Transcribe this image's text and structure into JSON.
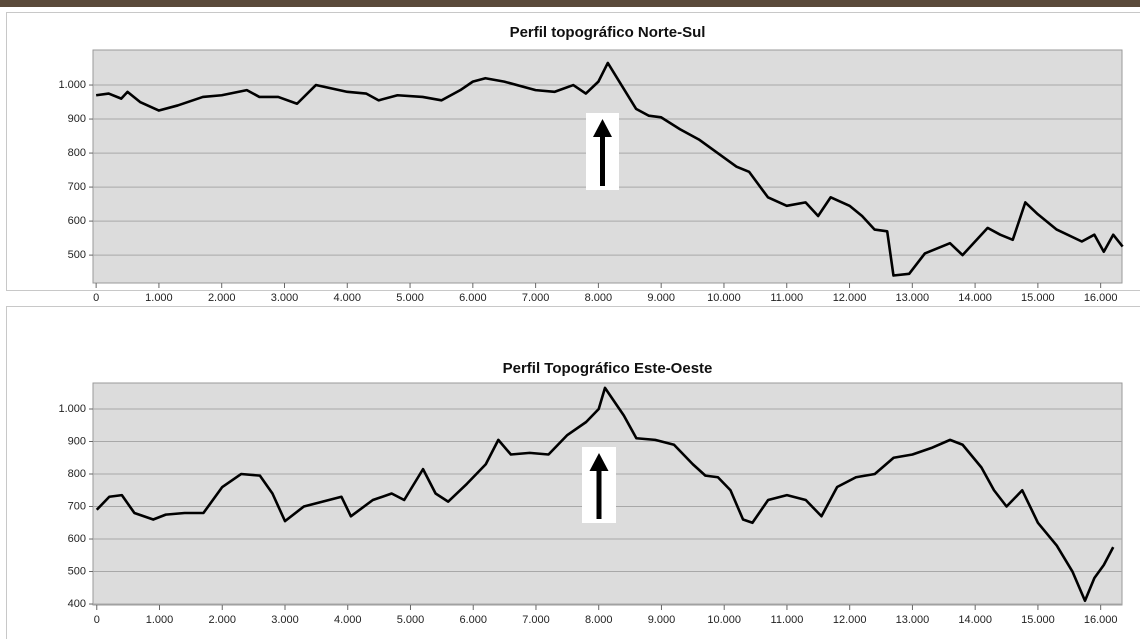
{
  "chart_data": [
    {
      "type": "line",
      "title": "Perfil topográfico Norte-Sul",
      "x": [
        0,
        200,
        400,
        500,
        700,
        1000,
        1300,
        1700,
        2000,
        2400,
        2600,
        2900,
        3200,
        3500,
        4000,
        4300,
        4500,
        4800,
        5200,
        5500,
        5800,
        6000,
        6200,
        6500,
        7000,
        7300,
        7600,
        7800,
        8000,
        8150,
        8400,
        8600,
        8800,
        9000,
        9300,
        9600,
        9900,
        10200,
        10400,
        10700,
        11000,
        11300,
        11500,
        11700,
        12000,
        12200,
        12400,
        12600,
        12700,
        12950,
        13200,
        13600,
        13800,
        14200,
        14400,
        14600,
        14800,
        15000,
        15300,
        15700,
        15900,
        16050,
        16200,
        16350
      ],
      "values": [
        970,
        975,
        960,
        980,
        950,
        925,
        940,
        965,
        970,
        985,
        965,
        965,
        945,
        1000,
        980,
        975,
        955,
        970,
        965,
        955,
        985,
        1010,
        1020,
        1010,
        985,
        980,
        1000,
        975,
        1010,
        1065,
        990,
        930,
        910,
        905,
        870,
        840,
        800,
        760,
        745,
        670,
        645,
        655,
        615,
        670,
        645,
        615,
        575,
        570,
        440,
        445,
        505,
        535,
        500,
        580,
        560,
        545,
        655,
        620,
        575,
        540,
        560,
        510,
        560,
        525
      ],
      "color": "#000000",
      "xlim": [
        -50,
        16340
      ],
      "ylim": [
        418,
        1103
      ],
      "xticks": [
        0,
        {
          "value": 1000,
          "label": "1.000"
        },
        {
          "value": 2000,
          "label": "2.000"
        },
        {
          "value": 3000,
          "label": "3.000"
        },
        {
          "value": 4000,
          "label": "4.000"
        },
        {
          "value": 5000,
          "label": "5.000"
        },
        {
          "value": 6000,
          "label": "6.000"
        },
        {
          "value": 7000,
          "label": "7.000"
        },
        {
          "value": 8000,
          "label": "8.000"
        },
        {
          "value": 9000,
          "label": "9.000"
        },
        {
          "value": 10000,
          "label": "10.000"
        },
        {
          "value": 11000,
          "label": "11.000"
        },
        {
          "value": 12000,
          "label": "12.000"
        },
        {
          "value": 13000,
          "label": "13.000"
        },
        {
          "value": 14000,
          "label": "14.000"
        },
        {
          "value": 15000,
          "label": "15.000"
        },
        {
          "value": 16000,
          "label": "16.000"
        }
      ],
      "yticks": [
        500,
        600,
        700,
        800,
        900,
        {
          "value": 1000,
          "label": "1.000"
        }
      ],
      "grid": true
    },
    {
      "type": "line",
      "title": "Perfil Topográfico Este-Oeste",
      "x": [
        0,
        200,
        400,
        600,
        900,
        1100,
        1400,
        1700,
        2000,
        2300,
        2600,
        2800,
        3000,
        3300,
        3600,
        3900,
        4050,
        4400,
        4700,
        4900,
        5200,
        5400,
        5600,
        5900,
        6200,
        6400,
        6600,
        6900,
        7200,
        7500,
        7800,
        8000,
        8100,
        8400,
        8600,
        8900,
        9200,
        9500,
        9700,
        9900,
        10100,
        10300,
        10450,
        10700,
        11000,
        11300,
        11550,
        11800,
        12100,
        12400,
        12700,
        13000,
        13300,
        13600,
        13800,
        14100,
        14300,
        14500,
        14750,
        15000,
        15300,
        15550,
        15750,
        15900,
        16050,
        16200
      ],
      "values": [
        690,
        730,
        735,
        680,
        660,
        675,
        680,
        680,
        760,
        800,
        795,
        740,
        655,
        700,
        715,
        730,
        670,
        720,
        740,
        720,
        815,
        740,
        715,
        770,
        830,
        905,
        860,
        865,
        860,
        920,
        960,
        1000,
        1065,
        980,
        910,
        905,
        890,
        830,
        795,
        790,
        750,
        660,
        650,
        720,
        735,
        720,
        670,
        760,
        790,
        800,
        850,
        860,
        880,
        905,
        890,
        820,
        750,
        700,
        750,
        650,
        580,
        500,
        410,
        480,
        520,
        575
      ],
      "color": "#000000",
      "xlim": [
        -60,
        16340
      ],
      "ylim": [
        397,
        1080
      ],
      "xticks": [
        0,
        {
          "value": 1000,
          "label": "1.000"
        },
        {
          "value": 2000,
          "label": "2.000"
        },
        {
          "value": 3000,
          "label": "3.000"
        },
        {
          "value": 4000,
          "label": "4.000"
        },
        {
          "value": 5000,
          "label": "5.000"
        },
        {
          "value": 6000,
          "label": "6.000"
        },
        {
          "value": 7000,
          "label": "7.000"
        },
        {
          "value": 8000,
          "label": "8.000"
        },
        {
          "value": 9000,
          "label": "9.000"
        },
        {
          "value": 10000,
          "label": "10.000"
        },
        {
          "value": 11000,
          "label": "11.000"
        },
        {
          "value": 12000,
          "label": "12.000"
        },
        {
          "value": 13000,
          "label": "13.000"
        },
        {
          "value": 14000,
          "label": "14.000"
        },
        {
          "value": 15000,
          "label": "15.000"
        },
        {
          "value": 16000,
          "label": "16.000"
        }
      ],
      "yticks": [
        400,
        500,
        600,
        700,
        800,
        900,
        {
          "value": 1000,
          "label": "1.000"
        }
      ],
      "grid": true
    }
  ]
}
